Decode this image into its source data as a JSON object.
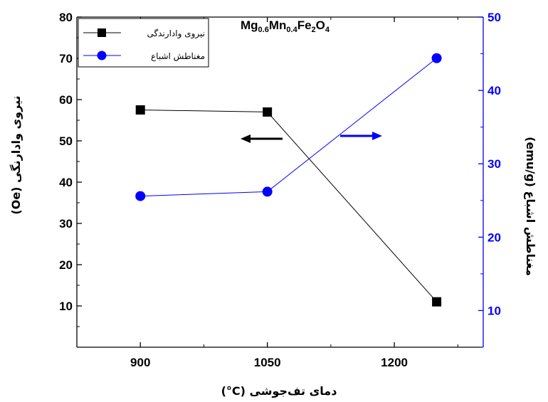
{
  "chart_data": {
    "type": "line",
    "title_parts": {
      "e1": "Mg",
      "s1": "0.6",
      "e2": "Mn",
      "s2": "0.4",
      "e3": "Fe",
      "s3": "2",
      "e4": "O",
      "s4": "4"
    },
    "xlabel": "(°C) دمای تف‌جوشی",
    "ylabel_left": "(Oe) نیروی وادارنگی",
    "ylabel_right": "(emu/g) مغناطش اشباع",
    "x_ticks": [
      900,
      1050,
      1200
    ],
    "xlim": [
      825,
      1305
    ],
    "ylim_left": [
      0,
      80
    ],
    "yticks_left": [
      10,
      20,
      30,
      40,
      50,
      60,
      70,
      80
    ],
    "ylim_right": [
      5,
      50
    ],
    "yticks_right": [
      10,
      20,
      30,
      40,
      50
    ],
    "series": [
      {
        "name": "نیروی وادارندگی",
        "axis": "left",
        "marker": "square",
        "color": "#000000",
        "x": [
          900,
          1050,
          1250
        ],
        "y": [
          57.5,
          57,
          11
        ]
      },
      {
        "name": "مغناطش اشباع",
        "axis": "right",
        "marker": "circle",
        "color": "#0000ff",
        "x": [
          900,
          1050,
          1250
        ],
        "y": [
          25.6,
          26.2,
          44.4
        ]
      }
    ],
    "annotations": [
      {
        "type": "arrow",
        "direction": "left",
        "color": "#000000",
        "target_axis": "left"
      },
      {
        "type": "arrow",
        "direction": "right",
        "color": "#0000ff",
        "target_axis": "right"
      }
    ],
    "legend_position": "top-left",
    "grid": false
  },
  "colors": {
    "left_axis": "#000000",
    "right_axis": "#0000ff"
  }
}
